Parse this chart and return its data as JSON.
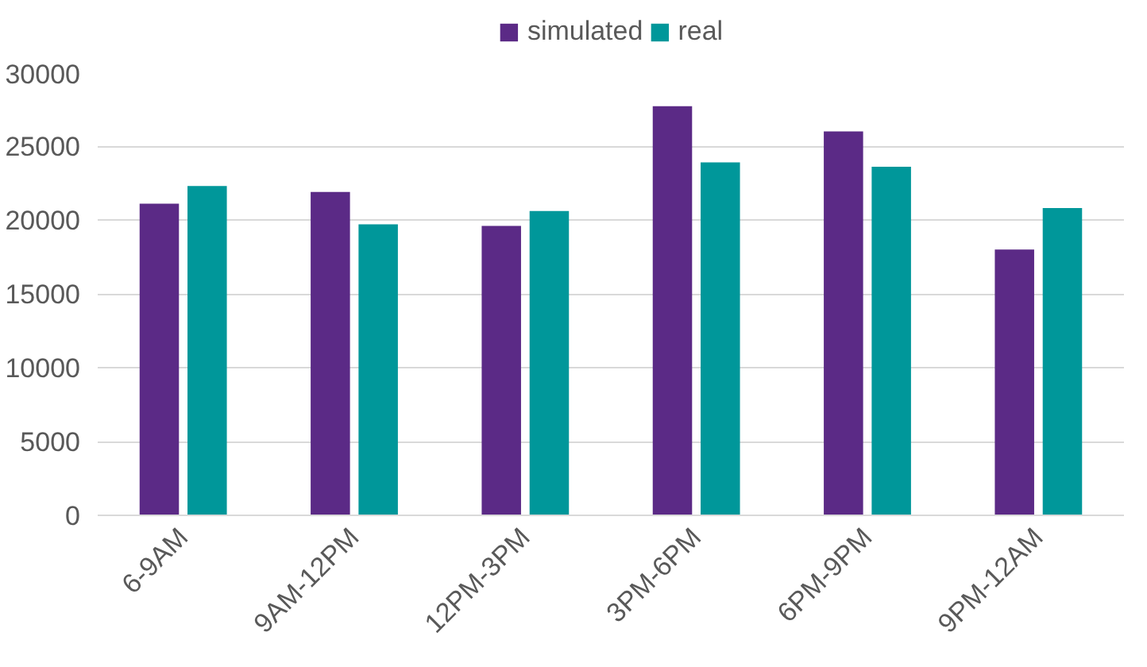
{
  "chart_data": {
    "type": "bar",
    "categories": [
      "6-9AM",
      "9AM-12PM",
      "12PM-3PM",
      "3PM-6PM",
      "6PM-9PM",
      "9PM-12AM"
    ],
    "series": [
      {
        "name": "simulated",
        "color": "#5b2a86",
        "values": [
          21100,
          21900,
          19600,
          27700,
          26000,
          18000
        ]
      },
      {
        "name": "real",
        "color": "#00979a",
        "values": [
          22300,
          19700,
          20600,
          23900,
          23600,
          20800
        ]
      }
    ],
    "ylim": [
      0,
      30000
    ],
    "yticks": [
      0,
      5000,
      10000,
      15000,
      20000,
      25000,
      30000
    ],
    "grid": "y",
    "legend": "top"
  }
}
